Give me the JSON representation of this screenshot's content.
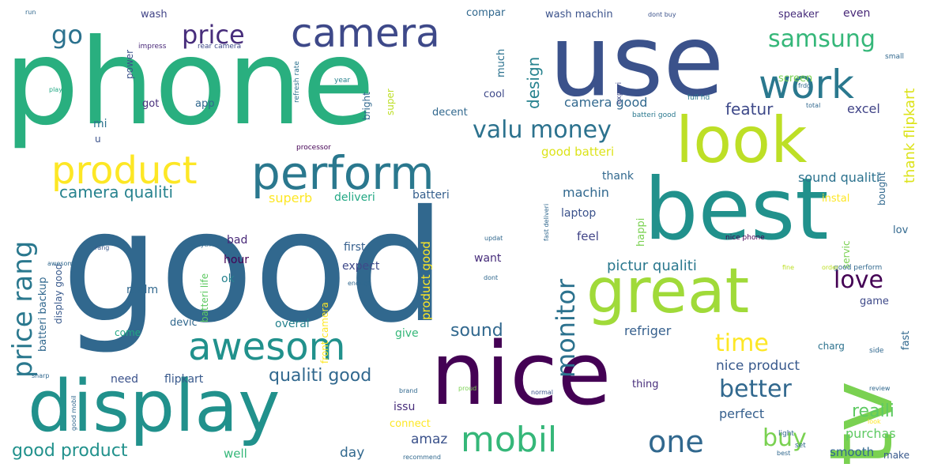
{
  "colors": {
    "background": "#ffffff",
    "palette": "viridis"
  },
  "words": [
    {
      "text": "good",
      "color": "#31688e"
    },
    {
      "text": "phone",
      "color": "#29af7f"
    },
    {
      "text": "use",
      "color": "#3b528b"
    },
    {
      "text": "best",
      "color": "#21918c"
    },
    {
      "text": "nice",
      "color": "#440154"
    },
    {
      "text": "display",
      "color": "#21918c"
    },
    {
      "text": "great",
      "color": "#a0da39"
    },
    {
      "text": "look",
      "color": "#bddf26"
    },
    {
      "text": "tv",
      "color": "#7ad151"
    },
    {
      "text": "perform",
      "color": "#2a788e"
    },
    {
      "text": "product",
      "color": "#fde725"
    },
    {
      "text": "awesom",
      "color": "#21918c"
    },
    {
      "text": "camera",
      "color": "#3e4989"
    },
    {
      "text": "work",
      "color": "#2a788e"
    },
    {
      "text": "mobil",
      "color": "#35b779"
    },
    {
      "text": "samsung",
      "color": "#35b779"
    },
    {
      "text": "valu money",
      "color": "#2c728e"
    },
    {
      "text": "price",
      "color": "#472d7b"
    },
    {
      "text": "go",
      "color": "#2c728e"
    },
    {
      "text": "one",
      "color": "#31688e"
    },
    {
      "text": "love",
      "color": "#440154"
    },
    {
      "text": "better",
      "color": "#31688e"
    },
    {
      "text": "time",
      "color": "#fde725"
    },
    {
      "text": "price rang",
      "color": "#2a788e"
    },
    {
      "text": "monitor",
      "color": "#2c728e"
    },
    {
      "text": "buy",
      "color": "#7ad151"
    },
    {
      "text": "good product",
      "color": "#21918c"
    },
    {
      "text": "camera qualiti",
      "color": "#26828e"
    },
    {
      "text": "qualiti good",
      "color": "#31688e"
    },
    {
      "text": "sound",
      "color": "#31688e"
    },
    {
      "text": "realli",
      "color": "#5ec962"
    },
    {
      "text": "thank flipkart",
      "color": "#dce319"
    },
    {
      "text": "featur",
      "color": "#3e4989"
    },
    {
      "text": "design",
      "color": "#26828e"
    },
    {
      "text": "good batteri",
      "color": "#dce319"
    },
    {
      "text": "camera good",
      "color": "#31688e"
    },
    {
      "text": "excel",
      "color": "#414487"
    },
    {
      "text": "sound qualiti",
      "color": "#2c728e"
    },
    {
      "text": "pictur qualiti",
      "color": "#2a788e"
    },
    {
      "text": "refriger",
      "color": "#355f8d"
    },
    {
      "text": "nice product",
      "color": "#38598c"
    },
    {
      "text": "perfect",
      "color": "#355f8d"
    },
    {
      "text": "purchas",
      "color": "#5ec962"
    },
    {
      "text": "amaz",
      "color": "#3b528b"
    },
    {
      "text": "day",
      "color": "#31688e"
    },
    {
      "text": "well",
      "color": "#35b779"
    },
    {
      "text": "smooth",
      "color": "#31688e"
    },
    {
      "text": "make",
      "color": "#38598c"
    },
    {
      "text": "superb",
      "color": "#fde725"
    },
    {
      "text": "deliveri",
      "color": "#22a884"
    },
    {
      "text": "batteri",
      "color": "#355f8d"
    },
    {
      "text": "machin",
      "color": "#31688e"
    },
    {
      "text": "thank",
      "color": "#31688e"
    },
    {
      "text": "laptop",
      "color": "#3b528b"
    },
    {
      "text": "feel",
      "color": "#414487"
    },
    {
      "text": "happi",
      "color": "#7ad151"
    },
    {
      "text": "want",
      "color": "#472d7b"
    },
    {
      "text": "expect",
      "color": "#3e4989"
    },
    {
      "text": "first",
      "color": "#355f8d"
    },
    {
      "text": "overal",
      "color": "#26828e"
    },
    {
      "text": "give",
      "color": "#35b779"
    },
    {
      "text": "need",
      "color": "#3b528b"
    },
    {
      "text": "flipkart",
      "color": "#38598c"
    },
    {
      "text": "issu",
      "color": "#472d7b"
    },
    {
      "text": "connect",
      "color": "#fde725"
    },
    {
      "text": "bad",
      "color": "#482878"
    },
    {
      "text": "hour",
      "color": "#440154"
    },
    {
      "text": "ok",
      "color": "#26828e"
    },
    {
      "text": "realm",
      "color": "#31688e"
    },
    {
      "text": "devic",
      "color": "#31688e"
    },
    {
      "text": "come",
      "color": "#22a884"
    },
    {
      "text": "got",
      "color": "#472d7b"
    },
    {
      "text": "app",
      "color": "#31688e"
    },
    {
      "text": "cool",
      "color": "#3e4989"
    },
    {
      "text": "decent",
      "color": "#31688e"
    },
    {
      "text": "bright",
      "color": "#31688e"
    },
    {
      "text": "super",
      "color": "#bddf26"
    },
    {
      "text": "compar",
      "color": "#31688e"
    },
    {
      "text": "much",
      "color": "#2c728e"
    },
    {
      "text": "wash",
      "color": "#414487"
    },
    {
      "text": "wash machin",
      "color": "#3b528b"
    },
    {
      "text": "speaker",
      "color": "#472d7b"
    },
    {
      "text": "even",
      "color": "#482878"
    },
    {
      "text": "screen",
      "color": "#7ad151"
    },
    {
      "text": "mi",
      "color": "#2c728e"
    },
    {
      "text": "u",
      "color": "#3b528b"
    },
    {
      "text": "instal",
      "color": "#fde725"
    },
    {
      "text": "lov",
      "color": "#31688e"
    },
    {
      "text": "game",
      "color": "#3e4989"
    },
    {
      "text": "charg",
      "color": "#2c728e"
    },
    {
      "text": "fast",
      "color": "#31688e"
    },
    {
      "text": "bought",
      "color": "#31688e"
    },
    {
      "text": "servic",
      "color": "#7ad151"
    },
    {
      "text": "thing",
      "color": "#472d7b"
    },
    {
      "text": "product good",
      "color": "#fde725"
    },
    {
      "text": "front camera",
      "color": "#fde725"
    },
    {
      "text": "batteri backup",
      "color": "#31688e"
    },
    {
      "text": "display good",
      "color": "#38598c"
    },
    {
      "text": "batteri life",
      "color": "#5ec962"
    },
    {
      "text": "set",
      "color": "#31688e"
    },
    {
      "text": "power",
      "color": "#3b528b"
    },
    {
      "text": "impress",
      "color": "#482878"
    },
    {
      "text": "rear camera",
      "color": "#3e4989"
    },
    {
      "text": "refresh rate",
      "color": "#2c728e"
    },
    {
      "text": "fast deliveri",
      "color": "#31688e"
    },
    {
      "text": "good perform",
      "color": "#31688e"
    },
    {
      "text": "nice phone",
      "color": "#440154"
    },
    {
      "text": "processor",
      "color": "#440154"
    },
    {
      "text": "full hd",
      "color": "#2a788e"
    },
    {
      "text": "batteri good",
      "color": "#2a788e"
    },
    {
      "text": "experi",
      "color": "#3e4989"
    },
    {
      "text": "year",
      "color": "#26828e"
    },
    {
      "text": "small",
      "color": "#31688e"
    },
    {
      "text": "light",
      "color": "#31688e"
    },
    {
      "text": "side",
      "color": "#31688e"
    },
    {
      "text": "best",
      "color": "#31688e"
    },
    {
      "text": "recommend",
      "color": "#31688e"
    },
    {
      "text": "proud",
      "color": "#7ad151"
    },
    {
      "text": "normal",
      "color": "#3b528b"
    },
    {
      "text": "brand",
      "color": "#31688e"
    },
    {
      "text": "updat",
      "color": "#31688e"
    },
    {
      "text": "enough",
      "color": "#31688e"
    },
    {
      "text": "dont",
      "color": "#31688e"
    },
    {
      "text": "review",
      "color": "#31688e"
    },
    {
      "text": "play",
      "color": "#22a884"
    },
    {
      "text": "rang",
      "color": "#38598c"
    },
    {
      "text": "everyth",
      "color": "#31688e"
    },
    {
      "text": "order",
      "color": "#bddf26"
    },
    {
      "text": "fine",
      "color": "#bddf26"
    },
    {
      "text": "look",
      "color": "#fde725"
    },
    {
      "text": "frdg",
      "color": "#31688e"
    },
    {
      "text": "dont buy",
      "color": "#3b528b"
    },
    {
      "text": "run",
      "color": "#31688e"
    },
    {
      "text": "total",
      "color": "#31688e"
    },
    {
      "text": "sharp",
      "color": "#31688e"
    },
    {
      "text": "good mobil",
      "color": "#31688e"
    },
    {
      "text": "awesom",
      "color": "#31688e"
    }
  ]
}
